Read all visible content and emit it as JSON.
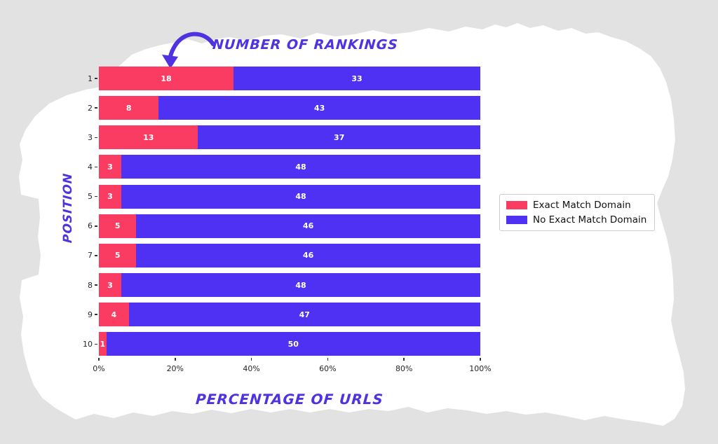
{
  "figure": {
    "annotation_label": "NUMBER OF RANKINGS",
    "x_axis_label": "PERCENTAGE OF URLS",
    "y_axis_label": "POSITION"
  },
  "legend": {
    "items": [
      {
        "label": "Exact Match Domain",
        "color": "#fa3c62"
      },
      {
        "label": "No Exact Match Domain",
        "color": "#4e31f2"
      }
    ]
  },
  "chart_data": {
    "type": "bar",
    "orientation": "horizontal",
    "stacked": true,
    "xlabel": "PERCENTAGE OF URLS",
    "ylabel": "POSITION",
    "categories": [
      "1",
      "2",
      "3",
      "4",
      "5",
      "6",
      "7",
      "8",
      "9",
      "10"
    ],
    "series": [
      {
        "name": "Exact Match Domain",
        "color": "#fa3c62",
        "values": [
          18,
          8,
          13,
          3,
          3,
          5,
          5,
          3,
          4,
          1
        ]
      },
      {
        "name": "No Exact Match Domain",
        "color": "#4e31f2",
        "values": [
          33,
          43,
          37,
          48,
          48,
          46,
          46,
          48,
          47,
          50
        ]
      }
    ],
    "x_ticks": [
      "0%",
      "20%",
      "40%",
      "60%",
      "80%",
      "100%"
    ],
    "xlim": [
      0,
      100
    ],
    "bar_value_labels_shown": true,
    "legend_position": "center right",
    "grid": false,
    "annotation": {
      "text": "NUMBER OF RANKINGS",
      "points_to": "first bar value label"
    }
  },
  "colors": {
    "background": "#e3e2e2",
    "paper": "#ffffff",
    "exact_match": "#fa3c62",
    "no_exact_match": "#4e31f2",
    "accent_text": "#4f33e1",
    "tick_text": "#262626",
    "bar_value_text": "#ffffff"
  }
}
